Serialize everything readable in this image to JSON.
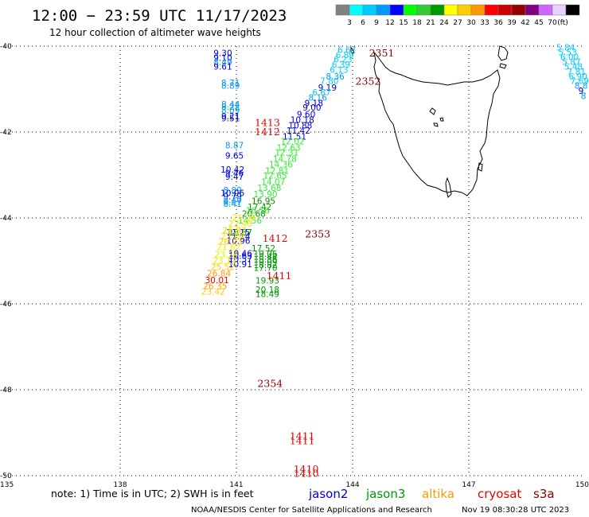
{
  "header": {
    "title": "12:00 − 23:59 UTC 11/17/2023",
    "subtitle": "12 hour collection of altimeter wave heights"
  },
  "legend": {
    "colors": [
      "#808080",
      "#00ffff",
      "#00ccff",
      "#0099ff",
      "#0000ff",
      "#00ff00",
      "#33cc33",
      "#009900",
      "#ffff00",
      "#ffcc00",
      "#ff9900",
      "#ff0000",
      "#cc0000",
      "#990000",
      "#800080",
      "#cc66ff",
      "#e8d0ff",
      "#000000"
    ],
    "labels": [
      "3",
      "6",
      "9",
      "12",
      "15",
      "18",
      "21",
      "24",
      "27",
      "30",
      "33",
      "36",
      "39",
      "42",
      "45",
      "70",
      "(ft)"
    ]
  },
  "chart_data": {
    "type": "scatter",
    "title": "12:00 − 23:59 UTC 11/17/2023",
    "xlim": [
      135,
      150
    ],
    "ylim": [
      -50,
      -40
    ],
    "x_ticks": [
      "135",
      "138",
      "141",
      "144",
      "147",
      "150"
    ],
    "y_ticks": [
      "-40",
      "-42",
      "-44",
      "-46",
      "-48",
      "-50"
    ],
    "grid": true,
    "series_legend": [
      {
        "name": "jason2",
        "color": "#0000dd"
      },
      {
        "name": "jason3",
        "color": "#009900"
      },
      {
        "name": "altika",
        "color": "#ff9900"
      },
      {
        "name": "cryosat",
        "color": "#ee0000"
      },
      {
        "name": "s3a",
        "color": "#880000"
      }
    ],
    "time_labels": [
      {
        "text": "2351",
        "lon": 144.75,
        "lat": -40.17,
        "color": "#880000"
      },
      {
        "text": "2352",
        "lon": 144.4,
        "lat": -40.82,
        "color": "#880000"
      },
      {
        "text": "1413",
        "lon": 141.8,
        "lat": -41.79,
        "color": "#ee0000"
      },
      {
        "text": "1412",
        "lon": 141.8,
        "lat": -42.0,
        "color": "#ee0000"
      },
      {
        "text": "2353",
        "lon": 143.1,
        "lat": -44.38,
        "color": "#880000"
      },
      {
        "text": "1412",
        "lon": 142.0,
        "lat": -44.48,
        "color": "#ee0000"
      },
      {
        "text": "1411",
        "lon": 142.1,
        "lat": -45.35,
        "color": "#ee0000"
      },
      {
        "text": "2354",
        "lon": 141.87,
        "lat": -47.86,
        "color": "#880000"
      },
      {
        "text": "1411",
        "lon": 142.7,
        "lat": -49.08,
        "color": "#ee0000"
      },
      {
        "text": "1411",
        "lon": 142.7,
        "lat": -49.19,
        "color": "#ee0000"
      },
      {
        "text": "1410",
        "lon": 142.8,
        "lat": -49.85,
        "color": "#ee0000"
      },
      {
        "text": "1410",
        "lon": 142.8,
        "lat": -49.95,
        "color": "#ee0000"
      }
    ],
    "points": [
      {
        "v": "9.30",
        "lon": 140.65,
        "lat": -40.16,
        "c": "#0000dd"
      },
      {
        "v": "9.10",
        "lon": 140.65,
        "lat": -40.27,
        "c": "#0000dd"
      },
      {
        "v": "8.49",
        "lon": 140.65,
        "lat": -40.37,
        "c": "#0099ff"
      },
      {
        "v": "9.61",
        "lon": 140.65,
        "lat": -40.47,
        "c": "#0000dd"
      },
      {
        "v": "8.71",
        "lon": 140.85,
        "lat": -40.85,
        "c": "#0099ff"
      },
      {
        "v": "8.89",
        "lon": 140.85,
        "lat": -40.92,
        "c": "#0099ff"
      },
      {
        "v": "8.44",
        "lon": 140.85,
        "lat": -41.35,
        "c": "#0099ff"
      },
      {
        "v": "8.22",
        "lon": 140.85,
        "lat": -41.41,
        "c": "#0099ff"
      },
      {
        "v": "8.09",
        "lon": 140.85,
        "lat": -41.49,
        "c": "#0099ff"
      },
      {
        "v": "9.21",
        "lon": 140.85,
        "lat": -41.63,
        "c": "#0000dd"
      },
      {
        "v": "9.51",
        "lon": 140.85,
        "lat": -41.68,
        "c": "#0000dd"
      },
      {
        "v": "8.87",
        "lon": 140.95,
        "lat": -42.31,
        "c": "#0099ff"
      },
      {
        "v": "9.65",
        "lon": 140.95,
        "lat": -42.55,
        "c": "#0000dd"
      },
      {
        "v": "10.42",
        "lon": 140.9,
        "lat": -42.87,
        "c": "#0000dd"
      },
      {
        "v": "9.46",
        "lon": 140.95,
        "lat": -42.95,
        "c": "#0000dd"
      },
      {
        "v": "9.47",
        "lon": 140.95,
        "lat": -43.04,
        "c": "#0000dd"
      },
      {
        "v": "8.89",
        "lon": 140.9,
        "lat": -43.35,
        "c": "#0099ff"
      },
      {
        "v": "10.06",
        "lon": 140.9,
        "lat": -43.42,
        "c": "#0000dd"
      },
      {
        "v": "9.79",
        "lon": 140.9,
        "lat": -43.49,
        "c": "#0000dd"
      },
      {
        "v": "8.40",
        "lon": 140.9,
        "lat": -43.57,
        "c": "#0099ff"
      },
      {
        "v": "8.47",
        "lon": 140.9,
        "lat": -43.62,
        "c": "#0099ff"
      },
      {
        "v": "8.41",
        "lon": 140.9,
        "lat": -43.67,
        "c": "#0099ff"
      },
      {
        "v": "11.15",
        "lon": 141.05,
        "lat": -44.33,
        "c": "#0000dd"
      },
      {
        "v": "11.14",
        "lon": 141.05,
        "lat": -44.43,
        "c": "#0000dd"
      },
      {
        "v": "10.96",
        "lon": 141.05,
        "lat": -44.53,
        "c": "#0000dd"
      },
      {
        "v": "10.46",
        "lon": 141.1,
        "lat": -44.82,
        "c": "#0000dd"
      },
      {
        "v": "10.63",
        "lon": 141.1,
        "lat": -44.88,
        "c": "#0000dd"
      },
      {
        "v": "10.57",
        "lon": 141.1,
        "lat": -44.95,
        "c": "#0000dd"
      },
      {
        "v": "10.91",
        "lon": 141.1,
        "lat": -45.07,
        "c": "#0000dd"
      },
      {
        "v": "6.67",
        "lon": 143.85,
        "lat": -40.08,
        "c": "#00ccff"
      },
      {
        "v": "6.89",
        "lon": 143.8,
        "lat": -40.2,
        "c": "#00ccff"
      },
      {
        "v": "6.23",
        "lon": 143.75,
        "lat": -40.31,
        "c": "#00ccff"
      },
      {
        "v": "6.39",
        "lon": 143.7,
        "lat": -40.43,
        "c": "#00ccff"
      },
      {
        "v": "6.13",
        "lon": 143.65,
        "lat": -40.55,
        "c": "#00ccff"
      },
      {
        "v": "8.36",
        "lon": 143.55,
        "lat": -40.7,
        "c": "#0099ff"
      },
      {
        "v": "7.80",
        "lon": 143.4,
        "lat": -40.81,
        "c": "#00ccff"
      },
      {
        "v": "9.19",
        "lon": 143.35,
        "lat": -40.96,
        "c": "#0000dd"
      },
      {
        "v": "6.67",
        "lon": 143.2,
        "lat": -41.07,
        "c": "#00ccff"
      },
      {
        "v": "8.16",
        "lon": 143.1,
        "lat": -41.19,
        "c": "#0099ff"
      },
      {
        "v": "9.18",
        "lon": 143.0,
        "lat": -41.32,
        "c": "#0000dd"
      },
      {
        "v": "9.00",
        "lon": 142.95,
        "lat": -41.43,
        "c": "#0000dd"
      },
      {
        "v": "9.60",
        "lon": 142.8,
        "lat": -41.58,
        "c": "#0000dd"
      },
      {
        "v": "10.18",
        "lon": 142.7,
        "lat": -41.71,
        "c": "#0000dd"
      },
      {
        "v": "10.88",
        "lon": 142.65,
        "lat": -41.84,
        "c": "#0000dd"
      },
      {
        "v": "11.42",
        "lon": 142.6,
        "lat": -41.96,
        "c": "#0000dd"
      },
      {
        "v": "11.51",
        "lon": 142.5,
        "lat": -42.1,
        "c": "#0000dd"
      },
      {
        "v": "12.02",
        "lon": 142.45,
        "lat": -42.21,
        "c": "#33ee33"
      },
      {
        "v": "12.63",
        "lon": 142.35,
        "lat": -42.36,
        "c": "#33ee33"
      },
      {
        "v": "12.31",
        "lon": 142.3,
        "lat": -42.47,
        "c": "#33ee33"
      },
      {
        "v": "14.78",
        "lon": 142.25,
        "lat": -42.62,
        "c": "#33ee33"
      },
      {
        "v": "14.36",
        "lon": 142.15,
        "lat": -42.75,
        "c": "#33ee33"
      },
      {
        "v": "12.81",
        "lon": 142.05,
        "lat": -42.9,
        "c": "#33ee33"
      },
      {
        "v": "12.65",
        "lon": 142.0,
        "lat": -43.01,
        "c": "#33ee33"
      },
      {
        "v": "14.07",
        "lon": 141.95,
        "lat": -43.16,
        "c": "#33ee33"
      },
      {
        "v": "13.68",
        "lon": 141.85,
        "lat": -43.3,
        "c": "#33ee33"
      },
      {
        "v": "13.90",
        "lon": 141.75,
        "lat": -43.44,
        "c": "#33ee33"
      },
      {
        "v": "16.95",
        "lon": 141.7,
        "lat": -43.6,
        "c": "#009900"
      },
      {
        "v": "17.42",
        "lon": 141.6,
        "lat": -43.74,
        "c": "#009900"
      },
      {
        "v": "16.56",
        "lon": 141.55,
        "lat": -43.82,
        "c": "#33ee33"
      },
      {
        "v": "20.68",
        "lon": 141.45,
        "lat": -43.9,
        "c": "#009900"
      },
      {
        "v": "14.56",
        "lon": 141.35,
        "lat": -44.06,
        "c": "#33ee33"
      },
      {
        "v": "18.87",
        "lon": 141.1,
        "lat": -44.33,
        "c": "#009900"
      },
      {
        "v": "21.36",
        "lon": 141.2,
        "lat": -43.99,
        "c": "#eeee00"
      },
      {
        "v": "22.40",
        "lon": 141.1,
        "lat": -44.13,
        "c": "#eeee00"
      },
      {
        "v": "26.87",
        "lon": 140.95,
        "lat": -44.29,
        "c": "#ffcc00"
      },
      {
        "v": "22.84",
        "lon": 140.9,
        "lat": -44.43,
        "c": "#eeee00"
      },
      {
        "v": "26.23",
        "lon": 140.85,
        "lat": -44.55,
        "c": "#ffcc00"
      },
      {
        "v": "21.62",
        "lon": 140.8,
        "lat": -44.68,
        "c": "#eeee00"
      },
      {
        "v": "23.24",
        "lon": 140.75,
        "lat": -44.84,
        "c": "#eeee00"
      },
      {
        "v": "23.13",
        "lon": 140.7,
        "lat": -44.99,
        "c": "#eeee00"
      },
      {
        "v": "25.52",
        "lon": 140.65,
        "lat": -45.14,
        "c": "#ffcc00"
      },
      {
        "v": "26.84",
        "lon": 140.55,
        "lat": -45.29,
        "c": "#ff9900"
      },
      {
        "v": "30.01",
        "lon": 140.5,
        "lat": -45.44,
        "c": "#ee0000"
      },
      {
        "v": "26.35",
        "lon": 140.45,
        "lat": -45.58,
        "c": "#ff9900"
      },
      {
        "v": "23.42",
        "lon": 140.4,
        "lat": -45.71,
        "c": "#ffcc00"
      },
      {
        "v": "17.52",
        "lon": 141.7,
        "lat": -44.7,
        "c": "#009900"
      },
      {
        "v": "19.06",
        "lon": 141.75,
        "lat": -44.83,
        "c": "#009900"
      },
      {
        "v": "18.44",
        "lon": 141.75,
        "lat": -44.9,
        "c": "#009900"
      },
      {
        "v": "18.86",
        "lon": 141.75,
        "lat": -44.96,
        "c": "#009900"
      },
      {
        "v": "19.09",
        "lon": 141.75,
        "lat": -45.03,
        "c": "#009900"
      },
      {
        "v": "18.82",
        "lon": 141.75,
        "lat": -45.09,
        "c": "#009900"
      },
      {
        "v": "17.70",
        "lon": 141.75,
        "lat": -45.16,
        "c": "#009900"
      },
      {
        "v": "19.93",
        "lon": 141.8,
        "lat": -45.45,
        "c": "#009900"
      },
      {
        "v": "20.18",
        "lon": 141.8,
        "lat": -45.67,
        "c": "#009900"
      },
      {
        "v": "18.49",
        "lon": 141.8,
        "lat": -45.77,
        "c": "#009900"
      },
      {
        "v": "5.84",
        "lon": 149.5,
        "lat": -40.03,
        "c": "#00ccff"
      },
      {
        "v": "5.53",
        "lon": 149.55,
        "lat": -40.14,
        "c": "#00ccff"
      },
      {
        "v": "6.00",
        "lon": 149.6,
        "lat": -40.25,
        "c": "#00ccff"
      },
      {
        "v": "5.87",
        "lon": 149.65,
        "lat": -40.36,
        "c": "#00ccff"
      },
      {
        "v": "5.48",
        "lon": 149.7,
        "lat": -40.47,
        "c": "#00ccff"
      },
      {
        "v": "7.81",
        "lon": 149.78,
        "lat": -40.59,
        "c": "#00ccff"
      },
      {
        "v": "6.90",
        "lon": 149.82,
        "lat": -40.7,
        "c": "#00ccff"
      },
      {
        "v": "7.69",
        "lon": 149.86,
        "lat": -40.81,
        "c": "#00ccff"
      },
      {
        "v": "8.8",
        "lon": 149.9,
        "lat": -40.92,
        "c": "#0099ff"
      },
      {
        "v": "9.",
        "lon": 149.93,
        "lat": -41.04,
        "c": "#0000dd"
      },
      {
        "v": "8",
        "lon": 149.96,
        "lat": -41.16,
        "c": "#0099ff"
      }
    ]
  },
  "note": {
    "text": "note: 1) Time is in UTC; 2) SWH is in feet"
  },
  "footer": {
    "credit": "NOAA/NESDIS Center for Satellite Applications and Research",
    "timestamp": "Nov 19 08:30:28 UTC 2023"
  }
}
